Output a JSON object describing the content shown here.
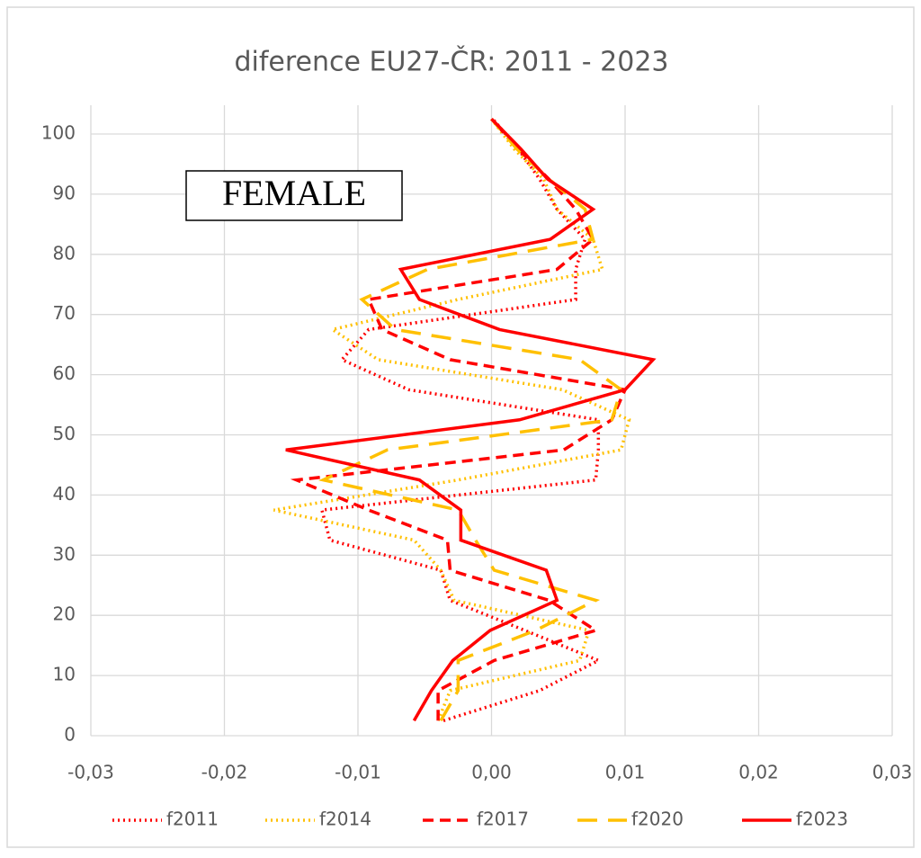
{
  "chart_data": {
    "type": "line",
    "orientation": "vertical",
    "title": "diference EU27-ČR: 2011 - 2023",
    "annotation": "FEMALE",
    "y": [
      2.5,
      7.5,
      12.5,
      17.5,
      22.5,
      27.5,
      32.5,
      37.5,
      42.5,
      47.5,
      52.5,
      57.5,
      62.5,
      67.5,
      72.5,
      77.5,
      82.5,
      87.5,
      92.5,
      97.5,
      102.5
    ],
    "series": [
      {
        "name": "f2011",
        "color": "#ff0000",
        "style": "dotted",
        "values": [
          -0.0036,
          0.0036,
          0.008,
          0.0025,
          -0.0031,
          -0.0038,
          -0.0121,
          -0.0127,
          0.0078,
          0.008,
          0.008,
          -0.0062,
          -0.0112,
          -0.0092,
          0.0063,
          0.0063,
          0.007,
          0.0049,
          0.0036,
          0.002,
          0.0001
        ]
      },
      {
        "name": "f2014",
        "color": "#ffc000",
        "style": "dotted",
        "values": [
          -0.004,
          -0.0031,
          0.0066,
          0.0073,
          -0.0028,
          -0.0038,
          -0.0058,
          -0.0163,
          -0.0025,
          0.0097,
          0.0103,
          0.0053,
          -0.0085,
          -0.0119,
          -0.0025,
          0.0083,
          0.0076,
          0.0049,
          0.0039,
          0.0017,
          0.0
        ]
      },
      {
        "name": "f2017",
        "color": "#ff0000",
        "style": "dashed",
        "values": [
          -0.004,
          -0.004,
          0.0002,
          0.0078,
          0.0043,
          -0.0031,
          -0.0033,
          -0.0092,
          -0.0146,
          0.0054,
          0.009,
          0.01,
          -0.0031,
          -0.0082,
          -0.0092,
          0.0049,
          0.0076,
          0.0063,
          0.0043,
          0.002,
          0.0
        ]
      },
      {
        "name": "f2020",
        "color": "#ffc000",
        "style": "long-dashed",
        "values": [
          -0.0038,
          -0.0025,
          -0.0025,
          0.0033,
          0.0078,
          0.0002,
          -0.0012,
          -0.0025,
          -0.0126,
          -0.0078,
          0.009,
          0.0097,
          0.0066,
          -0.0072,
          -0.0097,
          -0.0048,
          0.0076,
          0.007,
          0.0043,
          0.0019,
          0.0
        ]
      },
      {
        "name": "f2023",
        "color": "#ff0000",
        "style": "solid",
        "values": [
          -0.0058,
          -0.0045,
          -0.0029,
          -0.0001,
          0.0049,
          0.0041,
          -0.0023,
          -0.0023,
          -0.0054,
          -0.0154,
          0.0021,
          0.01,
          0.0121,
          0.0006,
          -0.0054,
          -0.0068,
          0.0044,
          0.0076,
          0.0042,
          0.0022,
          0.0
        ]
      }
    ],
    "xlim": [
      -0.03,
      0.03
    ],
    "xticks": [
      {
        "value": -0.03,
        "label": "-0,03"
      },
      {
        "value": -0.02,
        "label": "-0,02"
      },
      {
        "value": -0.01,
        "label": "-0,01"
      },
      {
        "value": 0,
        "label": "0,00"
      },
      {
        "value": 0.01,
        "label": "0,01"
      },
      {
        "value": 0.02,
        "label": "0,02"
      },
      {
        "value": 0.03,
        "label": "0,03"
      }
    ],
    "ylim": [
      0,
      100
    ],
    "yticks": [
      0,
      10,
      20,
      30,
      40,
      50,
      60,
      70,
      80,
      90,
      100
    ],
    "grid": true,
    "legend": "bottom"
  }
}
